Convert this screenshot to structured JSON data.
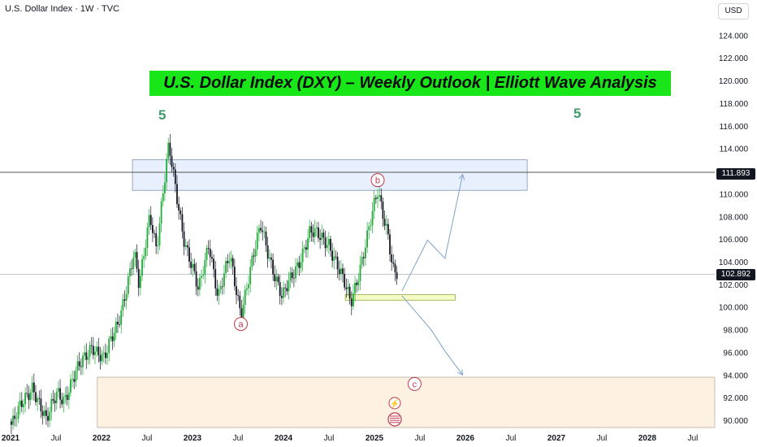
{
  "header": {
    "symbol_info": "U.S. Dollar Index · 1W · TVC",
    "currency_button": "USD"
  },
  "annotations": {
    "title": "U.S. Dollar Index (DXY) – Weekly Outlook | Elliott Wave Analysis",
    "wave_label_left": "5",
    "wave_label_right": "5",
    "wave_a": "a",
    "wave_b": "b",
    "wave_c": "c"
  },
  "price_tags": {
    "resistance_level": "111.893",
    "last_price": "102.892"
  },
  "colors": {
    "up_candle": "#22ab3a",
    "down_candle": "#131722",
    "banner": "#19e619",
    "wave_label": "#3f9a6a",
    "circle_label": "#c2384a",
    "projection": "#7fa2c9",
    "resistance_zone": "#e8effd",
    "support_zone_small": "#f4fbc4",
    "support_zone_large": "#fdf1e2"
  },
  "chart_data": {
    "type": "candlestick",
    "title": "U.S. Dollar Index (DXY) – Weekly Outlook | Elliott Wave Analysis",
    "x_ticks": [
      "2021",
      "Jul",
      "2022",
      "Jul",
      "2023",
      "Jul",
      "2024",
      "Jul",
      "2025",
      "Jul",
      "2026",
      "Jul",
      "2027",
      "Jul",
      "2028",
      "Jul"
    ],
    "y_ticks": [
      "124.000",
      "122.000",
      "120.000",
      "118.000",
      "116.000",
      "114.000",
      "112.000",
      "110.000",
      "108.000",
      "106.000",
      "104.000",
      "102.000",
      "100.000",
      "98.000",
      "96.000",
      "94.000",
      "92.000",
      "90.000"
    ],
    "ylim": [
      89.3,
      125.2
    ],
    "anchors": [
      [
        "2020-12-28",
        89.9
      ],
      [
        "2021-01-06",
        89.5
      ],
      [
        "2021-03-31",
        93.2
      ],
      [
        "2021-05-25",
        89.7
      ],
      [
        "2021-07-07",
        92.6
      ],
      [
        "2021-08-05",
        92.0
      ],
      [
        "2021-09-29",
        94.4
      ],
      [
        "2021-11-24",
        96.8
      ],
      [
        "2022-01-12",
        95.2
      ],
      [
        "2022-03-09",
        98.8
      ],
      [
        "2022-05-12",
        104.6
      ],
      [
        "2022-06-01",
        101.6
      ],
      [
        "2022-07-14",
        108.5
      ],
      [
        "2022-08-10",
        105.2
      ],
      [
        "2022-09-28",
        114.1
      ],
      [
        "2022-11-30",
        105.9
      ],
      [
        "2023-01-25",
        101.2
      ],
      [
        "2023-03-08",
        105.9
      ],
      [
        "2023-04-14",
        100.8
      ],
      [
        "2023-05-31",
        104.4
      ],
      [
        "2023-07-14",
        99.6
      ],
      [
        "2023-10-03",
        107.2
      ],
      [
        "2023-12-27",
        100.6
      ],
      [
        "2024-04-16",
        106.5
      ],
      [
        "2024-07-01",
        105.8
      ],
      [
        "2024-09-27",
        100.3
      ],
      [
        "2025-01-13",
        110.0
      ],
      [
        "2025-02-26",
        106.4
      ],
      [
        "2025-03-14",
        103.6
      ],
      [
        "2025-04-02",
        102.9
      ]
    ],
    "wave_count_labels": [
      {
        "text": "5",
        "date": "2022-09-28"
      },
      {
        "text": "a",
        "date": "2023-07-14",
        "price": 98.5
      },
      {
        "text": "b",
        "date": "2025-01-13",
        "price": 111.2
      },
      {
        "text": "c",
        "date": "2025-06-10",
        "price": 93.2
      }
    ],
    "zones": [
      {
        "name": "resistance",
        "from": "2022-05-05",
        "to": "2026-09-05",
        "low": 110.3,
        "high": 113.0
      },
      {
        "name": "support-small",
        "from": "2024-09-05",
        "to": "2025-11-20",
        "low": 100.6,
        "high": 101.1
      },
      {
        "name": "support-large",
        "from": "2021-12-15",
        "to": "2028-12-15",
        "low": 89.3,
        "high": 93.8
      }
    ],
    "horizontal_lines": [
      111.893,
      102.892
    ],
    "projections": [
      {
        "name": "bullish-path",
        "points": [
          [
            "2025-04-20",
            101.4
          ],
          [
            "2025-08-01",
            105.9
          ],
          [
            "2025-10-10",
            104.3
          ],
          [
            "2025-12-20",
            111.7
          ]
        ]
      },
      {
        "name": "bearish-path",
        "points": [
          [
            "2025-04-20",
            101.0
          ],
          [
            "2025-08-15",
            98.0
          ],
          [
            "2025-10-10",
            96.1
          ],
          [
            "2025-12-20",
            94.0
          ]
        ]
      }
    ]
  }
}
